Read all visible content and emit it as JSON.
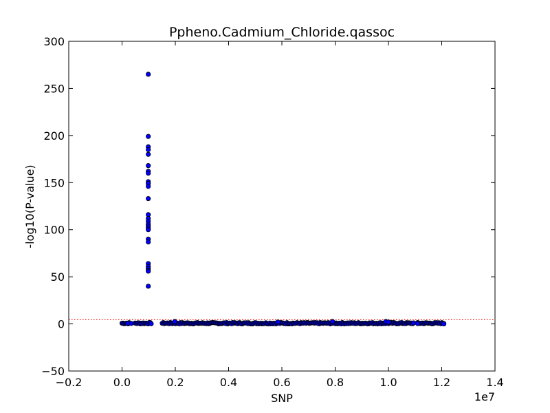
{
  "chart_data": {
    "type": "scatter",
    "title": "Ppheno.Cadmium_Chloride.qassoc",
    "xlabel": "SNP",
    "ylabel": "-log10(P-value)",
    "x_offset_label": "1e7",
    "xlim": [
      -0.2,
      1.4
    ],
    "ylim": [
      -50,
      300
    ],
    "x_ticks": [
      -0.2,
      0.0,
      0.2,
      0.4,
      0.6,
      0.8,
      1.0,
      1.2,
      1.4
    ],
    "x_tick_labels": [
      "−0.2",
      "0.0",
      "0.2",
      "0.4",
      "0.6",
      "0.8",
      "1.0",
      "1.2",
      "1.4"
    ],
    "y_ticks": [
      -50,
      0,
      50,
      100,
      150,
      200,
      250,
      300
    ],
    "y_tick_labels": [
      "−50",
      "0",
      "50",
      "100",
      "150",
      "200",
      "250",
      "300"
    ],
    "threshold": {
      "y": 4.5,
      "style": "dotted",
      "color": "#ff0000"
    },
    "grid": false,
    "colors": {
      "marker_fill": "#0000ff",
      "marker_edge": "#000000"
    },
    "peak_points": {
      "x": 0.0985,
      "y": [
        265,
        199,
        188,
        185,
        180,
        168,
        162,
        160,
        151,
        149,
        146,
        133,
        116,
        112,
        109,
        106,
        104,
        102,
        100,
        90,
        87,
        64,
        61,
        59,
        57,
        56,
        40
      ]
    },
    "baseline": {
      "x_start": 0.0,
      "x_end": 1.208,
      "gaps": [
        [
          0.03,
          0.048
        ],
        [
          0.11,
          0.15
        ],
        [
          1.095,
          1.108
        ]
      ],
      "y_range": [
        0,
        1.5
      ],
      "elevated_points": [
        [
          0.198,
          2.5
        ],
        [
          0.585,
          2.0
        ],
        [
          0.79,
          2.5
        ],
        [
          0.99,
          2.5
        ],
        [
          1.0,
          2.0
        ]
      ],
      "isolated_points": [
        [
          0.035,
          0.5
        ],
        [
          0.0215,
          0.5
        ],
        [
          1.11,
          0.3
        ],
        [
          1.208,
          0.0
        ]
      ]
    }
  }
}
